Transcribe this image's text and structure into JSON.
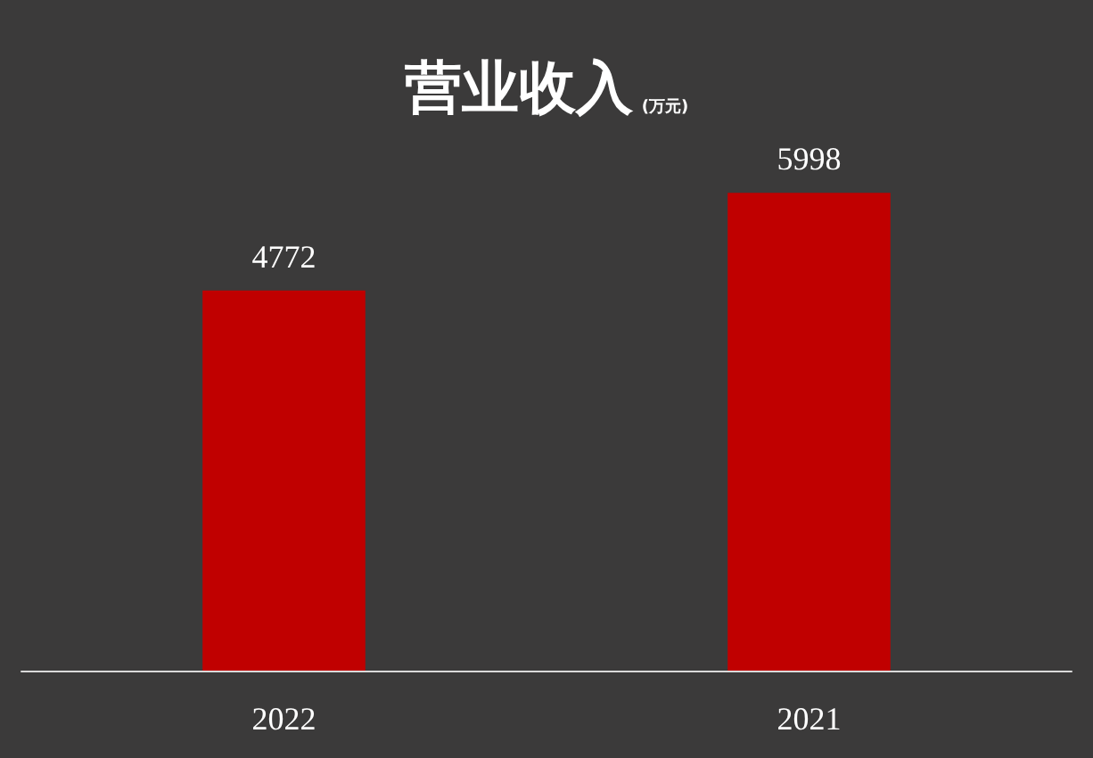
{
  "chart_data": {
    "type": "bar",
    "title": "营业收入",
    "subtitle": "(万元)",
    "categories": [
      "2022",
      "2021"
    ],
    "values": [
      4772,
      5998
    ],
    "color": "#c00000",
    "data_labels": true,
    "tick_labels": "x"
  }
}
